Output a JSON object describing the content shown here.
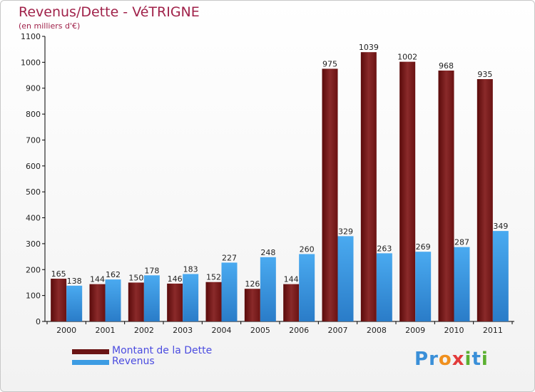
{
  "chart_data": {
    "type": "bar",
    "title": "Revenus/Dette - VéTRIGNE",
    "subtitle": "(en milliers d'€)",
    "categories": [
      "2000",
      "2001",
      "2002",
      "2003",
      "2004",
      "2005",
      "2006",
      "2007",
      "2008",
      "2009",
      "2010",
      "2011"
    ],
    "series": [
      {
        "name": "Montant de la Dette",
        "color": "#7a1a1a",
        "values": [
          165,
          144,
          150,
          146,
          152,
          126,
          144,
          975,
          1039,
          1002,
          968,
          935
        ]
      },
      {
        "name": "Revenus",
        "color": "#3d9ce3",
        "values": [
          138,
          162,
          178,
          183,
          227,
          248,
          260,
          329,
          263,
          269,
          287,
          349
        ]
      }
    ],
    "ylim": [
      0,
      1100
    ],
    "yticks": [
      0,
      100,
      200,
      300,
      400,
      500,
      600,
      700,
      800,
      900,
      1000,
      1100
    ],
    "grid": false,
    "legend": "bottom-left"
  },
  "logo": {
    "text": "Proxiti",
    "letters": [
      "P",
      "r",
      "o",
      "x",
      "i",
      "t",
      "i"
    ],
    "colors": [
      "#3a8fd8",
      "#3a8fd8",
      "#f0901e",
      "#e23b3b",
      "#5bb030",
      "#3a8fd8",
      "#5bb030"
    ]
  }
}
